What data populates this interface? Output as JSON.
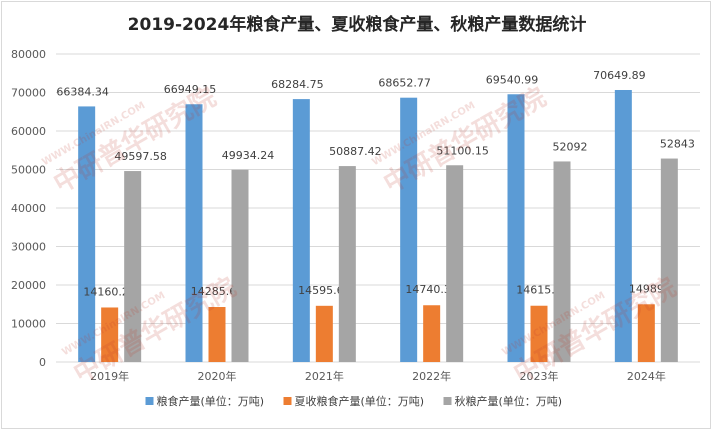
{
  "chart_data": {
    "type": "bar",
    "title": "2019-2024年粮食产量、夏收粮食产量、秋粮产量数据统计",
    "categories": [
      "2019年",
      "2020年",
      "2021年",
      "2022年",
      "2023年",
      "2024年"
    ],
    "series": [
      {
        "name": "粮食产量(单位：万吨)",
        "color": "#5b9bd5",
        "values": [
          66384.34,
          66949.15,
          68284.75,
          68652.77,
          69540.99,
          70649.89
        ],
        "labels": [
          "66384.34",
          "66949.15",
          "68284.75",
          "68652.77",
          "69540.99",
          "70649.89"
        ]
      },
      {
        "name": "夏收粮食产量(单位：万吨)",
        "color": "#ed7d31",
        "values": [
          14160.23,
          14285.61,
          14595.68,
          14740.35,
          14615.2,
          14989
        ],
        "labels": [
          "14160.23",
          "14285.61",
          "14595.68",
          "14740.35",
          "14615.2",
          "14989"
        ]
      },
      {
        "name": "秋粮产量(单位：万吨)",
        "color": "#a5a5a5",
        "values": [
          49597.58,
          49934.24,
          50887.42,
          51100.15,
          52092,
          52843
        ],
        "labels": [
          "49597.58",
          "49934.24",
          "50887.42",
          "51100.15",
          "52092",
          "52843"
        ]
      }
    ],
    "ylim": [
      0,
      80000
    ],
    "yticks": [
      "0",
      "10000",
      "20000",
      "30000",
      "40000",
      "50000",
      "60000",
      "70000",
      "80000"
    ],
    "grid": true,
    "legend": "bottom"
  },
  "watermark": {
    "main": "中研普华研究院",
    "sub": "WWW.ChinaIRN.COM",
    "logo": "CIRN"
  }
}
